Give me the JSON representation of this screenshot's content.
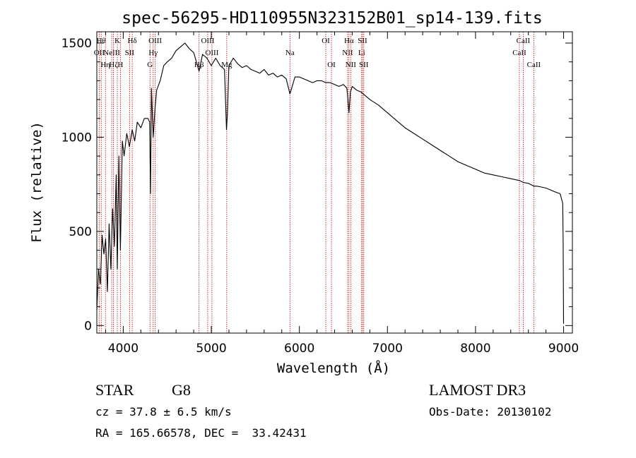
{
  "chart_data": {
    "type": "line",
    "title": "spec-56295-HD110955N323152B01_sp14-139.fits",
    "xlabel": "Wavelength (Å)",
    "ylabel": "Flux (relative)",
    "xlim": [
      3700,
      9100
    ],
    "ylim": [
      -40,
      1560
    ],
    "xticks": [
      4000,
      5000,
      6000,
      7000,
      8000,
      9000
    ],
    "yticks": [
      0,
      500,
      1000,
      1500
    ],
    "series": [
      {
        "name": "flux",
        "x": [
          3700,
          3720,
          3740,
          3760,
          3780,
          3800,
          3820,
          3840,
          3860,
          3880,
          3900,
          3920,
          3933,
          3950,
          3968,
          3990,
          4010,
          4040,
          4070,
          4102,
          4130,
          4160,
          4200,
          4240,
          4280,
          4300,
          4310,
          4320,
          4340,
          4360,
          4380,
          4420,
          4460,
          4500,
          4550,
          4600,
          4650,
          4700,
          4750,
          4800,
          4861,
          4900,
          4950,
          5000,
          5050,
          5100,
          5150,
          5172,
          5183,
          5200,
          5250,
          5300,
          5350,
          5400,
          5450,
          5500,
          5550,
          5600,
          5650,
          5700,
          5750,
          5800,
          5850,
          5893,
          5950,
          6000,
          6050,
          6100,
          6150,
          6200,
          6250,
          6300,
          6350,
          6400,
          6450,
          6500,
          6540,
          6563,
          6580,
          6600,
          6650,
          6700,
          6750,
          6800,
          6900,
          7000,
          7100,
          7200,
          7300,
          7400,
          7500,
          7600,
          7700,
          7800,
          7900,
          8000,
          8100,
          8200,
          8300,
          8400,
          8498,
          8542,
          8600,
          8662,
          8700,
          8800,
          8900,
          8960,
          8990,
          8995,
          9000
        ],
        "y": [
          80,
          300,
          220,
          480,
          380,
          460,
          180,
          540,
          300,
          620,
          420,
          800,
          300,
          900,
          400,
          980,
          900,
          1020,
          950,
          1040,
          980,
          1080,
          1050,
          1100,
          1100,
          1080,
          700,
          1260,
          1000,
          1150,
          1250,
          1300,
          1380,
          1400,
          1420,
          1460,
          1480,
          1500,
          1470,
          1450,
          1350,
          1440,
          1420,
          1380,
          1420,
          1380,
          1360,
          1040,
          1120,
          1380,
          1420,
          1390,
          1370,
          1380,
          1360,
          1350,
          1340,
          1360,
          1330,
          1340,
          1320,
          1330,
          1310,
          1230,
          1320,
          1320,
          1310,
          1300,
          1290,
          1300,
          1300,
          1290,
          1290,
          1280,
          1270,
          1280,
          1260,
          1130,
          1240,
          1270,
          1250,
          1240,
          1220,
          1200,
          1170,
          1130,
          1090,
          1050,
          1020,
          990,
          960,
          930,
          900,
          870,
          850,
          830,
          810,
          800,
          790,
          780,
          770,
          760,
          755,
          740,
          740,
          730,
          710,
          700,
          650,
          450,
          10
        ]
      }
    ],
    "line_markers": [
      {
        "wavelength": 3727,
        "label": "OII",
        "tier": 2
      },
      {
        "wavelength": 3750,
        "label": "Hθ",
        "tier": 1
      },
      {
        "wavelength": 3798,
        "label": "Hη",
        "tier": 3
      },
      {
        "wavelength": 3869,
        "label": "NeIII",
        "tier": 2
      },
      {
        "wavelength": 3889,
        "label": "Hζ",
        "tier": 3
      },
      {
        "wavelength": 3933,
        "label": "K",
        "tier": 1
      },
      {
        "wavelength": 3968,
        "label": "H",
        "tier": 3
      },
      {
        "wavelength": 4072,
        "label": "SII",
        "tier": 2
      },
      {
        "wavelength": 4102,
        "label": "Hδ",
        "tier": 1
      },
      {
        "wavelength": 4304,
        "label": "G",
        "tier": 3
      },
      {
        "wavelength": 4340,
        "label": "Hγ",
        "tier": 2
      },
      {
        "wavelength": 4363,
        "label": "OIII",
        "tier": 1
      },
      {
        "wavelength": 4861,
        "label": "Hβ",
        "tier": 3
      },
      {
        "wavelength": 4959,
        "label": "OIII",
        "tier": 1
      },
      {
        "wavelength": 5007,
        "label": "OIII",
        "tier": 2
      },
      {
        "wavelength": 5175,
        "label": "Mg",
        "tier": 3
      },
      {
        "wavelength": 5893,
        "label": "Na",
        "tier": 2
      },
      {
        "wavelength": 6300,
        "label": "OI",
        "tier": 1
      },
      {
        "wavelength": 6364,
        "label": "OI",
        "tier": 3
      },
      {
        "wavelength": 6548,
        "label": "NII",
        "tier": 2
      },
      {
        "wavelength": 6563,
        "label": "Hα",
        "tier": 1
      },
      {
        "wavelength": 6583,
        "label": "NII",
        "tier": 3
      },
      {
        "wavelength": 6707,
        "label": "Li",
        "tier": 2
      },
      {
        "wavelength": 6717,
        "label": "SII",
        "tier": 1
      },
      {
        "wavelength": 6731,
        "label": "SII",
        "tier": 3
      },
      {
        "wavelength": 8498,
        "label": "CaII",
        "tier": 2
      },
      {
        "wavelength": 8542,
        "label": "CaII",
        "tier": 1
      },
      {
        "wavelength": 8662,
        "label": "CaII",
        "tier": 3
      }
    ]
  },
  "info": {
    "class_label": "STAR",
    "subclass": "G8",
    "survey": "LAMOST DR3",
    "redshift_text": "cz = 37.8 ± 6.5 km/s",
    "obs_date_text": "Obs-Date: 20130102",
    "coords_text": "RA = 165.66578, DEC =  33.42431"
  },
  "colors": {
    "axis": "#000000",
    "spectrum": "#000000",
    "marker_line": "#cc0000",
    "background": "#ffffff"
  }
}
